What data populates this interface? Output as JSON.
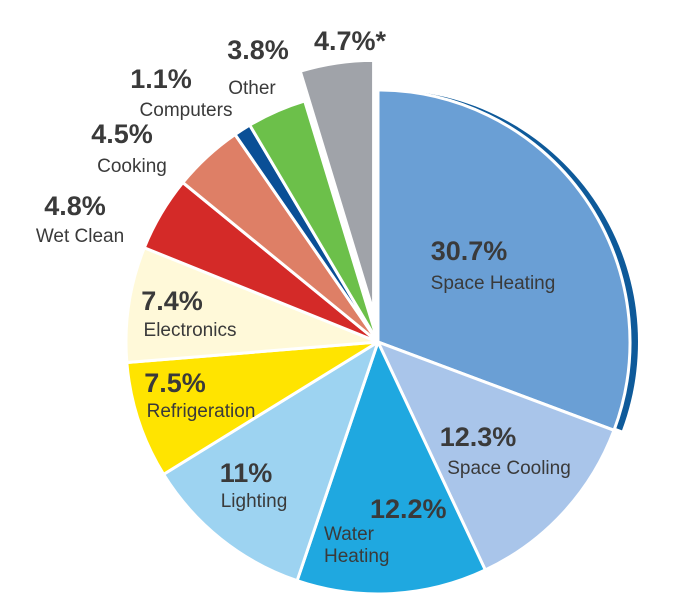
{
  "chart_data": {
    "type": "pie",
    "title": "",
    "slices": [
      {
        "name": "Space Heating",
        "value": 30.7,
        "label": "30.7%",
        "color": "#6a9fd5",
        "edge_color": "#0e5a9a"
      },
      {
        "name": "Space Cooling",
        "value": 12.3,
        "label": "12.3%",
        "color": "#a9c5ea"
      },
      {
        "name": "Water Heating",
        "value": 12.2,
        "label": "12.2%",
        "color": "#1fa8e0",
        "label_lines": [
          "Water",
          "Heating"
        ]
      },
      {
        "name": "Lighting",
        "value": 11,
        "label": "11%",
        "color": "#9dd3f1"
      },
      {
        "name": "Refrigeration",
        "value": 7.5,
        "label": "7.5%",
        "color": "#ffe400"
      },
      {
        "name": "Electronics",
        "value": 7.4,
        "label": "7.4%",
        "color": "#fff9d9"
      },
      {
        "name": "Wet Clean",
        "value": 4.8,
        "label": "4.8%",
        "color": "#d42a28"
      },
      {
        "name": "Cooking",
        "value": 4.5,
        "label": "4.5%",
        "color": "#de7f66"
      },
      {
        "name": "Computers",
        "value": 1.1,
        "label": "1.1%",
        "color": "#0a4f96"
      },
      {
        "name": "Other",
        "value": 3.8,
        "label": "3.8%",
        "color": "#6cc04a"
      },
      {
        "name": "",
        "value": 4.7,
        "label": "4.7%*",
        "color": "#a0a3a9",
        "exploded": true
      }
    ]
  }
}
